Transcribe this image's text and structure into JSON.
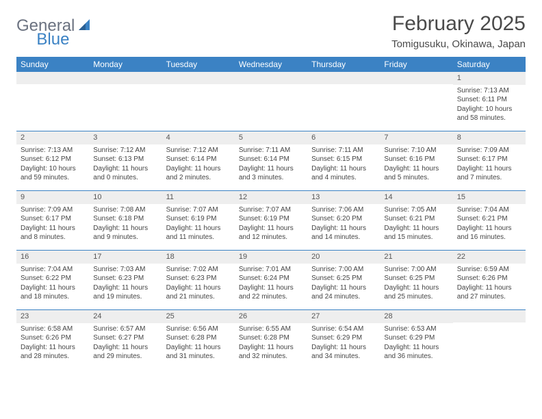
{
  "logo": {
    "brand_a": "General",
    "brand_b": "Blue"
  },
  "title": "February 2025",
  "location": "Tomigusuku, Okinawa, Japan",
  "colors": {
    "header_bg": "#3b82c4",
    "header_text": "#ffffff",
    "daynum_bg": "#eeeeee",
    "border": "#3b82c4",
    "logo_gray": "#6b7280",
    "logo_blue": "#3b82c4"
  },
  "day_names": [
    "Sunday",
    "Monday",
    "Tuesday",
    "Wednesday",
    "Thursday",
    "Friday",
    "Saturday"
  ],
  "weeks": [
    [
      null,
      null,
      null,
      null,
      null,
      null,
      {
        "n": "1",
        "sr": "Sunrise: 7:13 AM",
        "ss": "Sunset: 6:11 PM",
        "dl": "Daylight: 10 hours and 58 minutes."
      }
    ],
    [
      {
        "n": "2",
        "sr": "Sunrise: 7:13 AM",
        "ss": "Sunset: 6:12 PM",
        "dl": "Daylight: 10 hours and 59 minutes."
      },
      {
        "n": "3",
        "sr": "Sunrise: 7:12 AM",
        "ss": "Sunset: 6:13 PM",
        "dl": "Daylight: 11 hours and 0 minutes."
      },
      {
        "n": "4",
        "sr": "Sunrise: 7:12 AM",
        "ss": "Sunset: 6:14 PM",
        "dl": "Daylight: 11 hours and 2 minutes."
      },
      {
        "n": "5",
        "sr": "Sunrise: 7:11 AM",
        "ss": "Sunset: 6:14 PM",
        "dl": "Daylight: 11 hours and 3 minutes."
      },
      {
        "n": "6",
        "sr": "Sunrise: 7:11 AM",
        "ss": "Sunset: 6:15 PM",
        "dl": "Daylight: 11 hours and 4 minutes."
      },
      {
        "n": "7",
        "sr": "Sunrise: 7:10 AM",
        "ss": "Sunset: 6:16 PM",
        "dl": "Daylight: 11 hours and 5 minutes."
      },
      {
        "n": "8",
        "sr": "Sunrise: 7:09 AM",
        "ss": "Sunset: 6:17 PM",
        "dl": "Daylight: 11 hours and 7 minutes."
      }
    ],
    [
      {
        "n": "9",
        "sr": "Sunrise: 7:09 AM",
        "ss": "Sunset: 6:17 PM",
        "dl": "Daylight: 11 hours and 8 minutes."
      },
      {
        "n": "10",
        "sr": "Sunrise: 7:08 AM",
        "ss": "Sunset: 6:18 PM",
        "dl": "Daylight: 11 hours and 9 minutes."
      },
      {
        "n": "11",
        "sr": "Sunrise: 7:07 AM",
        "ss": "Sunset: 6:19 PM",
        "dl": "Daylight: 11 hours and 11 minutes."
      },
      {
        "n": "12",
        "sr": "Sunrise: 7:07 AM",
        "ss": "Sunset: 6:19 PM",
        "dl": "Daylight: 11 hours and 12 minutes."
      },
      {
        "n": "13",
        "sr": "Sunrise: 7:06 AM",
        "ss": "Sunset: 6:20 PM",
        "dl": "Daylight: 11 hours and 14 minutes."
      },
      {
        "n": "14",
        "sr": "Sunrise: 7:05 AM",
        "ss": "Sunset: 6:21 PM",
        "dl": "Daylight: 11 hours and 15 minutes."
      },
      {
        "n": "15",
        "sr": "Sunrise: 7:04 AM",
        "ss": "Sunset: 6:21 PM",
        "dl": "Daylight: 11 hours and 16 minutes."
      }
    ],
    [
      {
        "n": "16",
        "sr": "Sunrise: 7:04 AM",
        "ss": "Sunset: 6:22 PM",
        "dl": "Daylight: 11 hours and 18 minutes."
      },
      {
        "n": "17",
        "sr": "Sunrise: 7:03 AM",
        "ss": "Sunset: 6:23 PM",
        "dl": "Daylight: 11 hours and 19 minutes."
      },
      {
        "n": "18",
        "sr": "Sunrise: 7:02 AM",
        "ss": "Sunset: 6:23 PM",
        "dl": "Daylight: 11 hours and 21 minutes."
      },
      {
        "n": "19",
        "sr": "Sunrise: 7:01 AM",
        "ss": "Sunset: 6:24 PM",
        "dl": "Daylight: 11 hours and 22 minutes."
      },
      {
        "n": "20",
        "sr": "Sunrise: 7:00 AM",
        "ss": "Sunset: 6:25 PM",
        "dl": "Daylight: 11 hours and 24 minutes."
      },
      {
        "n": "21",
        "sr": "Sunrise: 7:00 AM",
        "ss": "Sunset: 6:25 PM",
        "dl": "Daylight: 11 hours and 25 minutes."
      },
      {
        "n": "22",
        "sr": "Sunrise: 6:59 AM",
        "ss": "Sunset: 6:26 PM",
        "dl": "Daylight: 11 hours and 27 minutes."
      }
    ],
    [
      {
        "n": "23",
        "sr": "Sunrise: 6:58 AM",
        "ss": "Sunset: 6:26 PM",
        "dl": "Daylight: 11 hours and 28 minutes."
      },
      {
        "n": "24",
        "sr": "Sunrise: 6:57 AM",
        "ss": "Sunset: 6:27 PM",
        "dl": "Daylight: 11 hours and 29 minutes."
      },
      {
        "n": "25",
        "sr": "Sunrise: 6:56 AM",
        "ss": "Sunset: 6:28 PM",
        "dl": "Daylight: 11 hours and 31 minutes."
      },
      {
        "n": "26",
        "sr": "Sunrise: 6:55 AM",
        "ss": "Sunset: 6:28 PM",
        "dl": "Daylight: 11 hours and 32 minutes."
      },
      {
        "n": "27",
        "sr": "Sunrise: 6:54 AM",
        "ss": "Sunset: 6:29 PM",
        "dl": "Daylight: 11 hours and 34 minutes."
      },
      {
        "n": "28",
        "sr": "Sunrise: 6:53 AM",
        "ss": "Sunset: 6:29 PM",
        "dl": "Daylight: 11 hours and 36 minutes."
      },
      null
    ]
  ]
}
